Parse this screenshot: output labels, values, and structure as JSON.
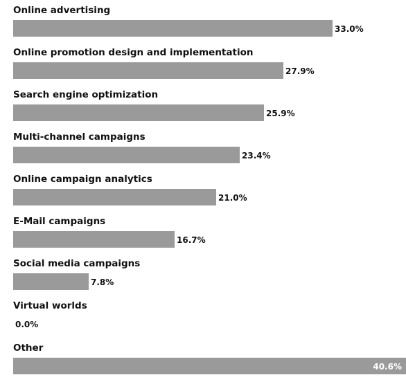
{
  "chart_data": {
    "type": "bar",
    "orientation": "horizontal",
    "title": "",
    "xlabel": "",
    "ylabel": "",
    "xlim": [
      0,
      40.6
    ],
    "grid": false,
    "legend": "none",
    "bar_color": "#9a9a9a",
    "categories": [
      "Online advertising",
      "Online promotion design and implementation",
      "Search engine optimization",
      "Multi-channel campaigns",
      "Online campaign analytics",
      "E-Mail campaigns",
      "Social media campaigns",
      "Virtual worlds",
      "Other"
    ],
    "values": [
      33.0,
      27.9,
      25.9,
      23.4,
      21.0,
      16.7,
      7.8,
      0.0,
      40.6
    ],
    "value_labels": [
      "33.0%",
      "27.9%",
      "25.9%",
      "23.4%",
      "21.0%",
      "16.7%",
      "7.8%",
      "0.0%",
      "40.6%"
    ]
  }
}
